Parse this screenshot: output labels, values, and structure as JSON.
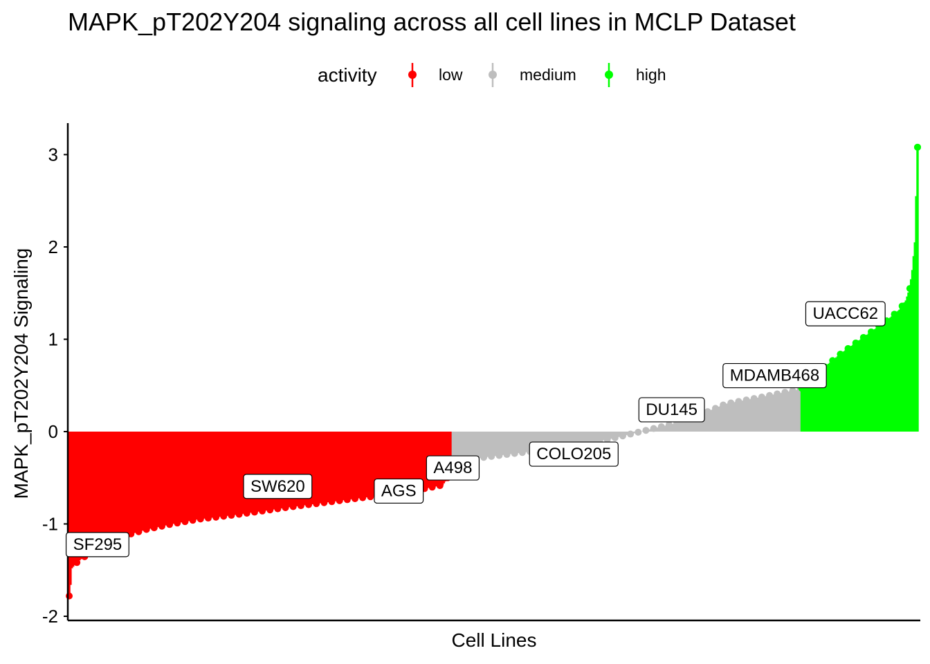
{
  "chart_data": {
    "type": "bar",
    "title": "MAPK_pT202Y204 signaling across all cell lines in MCLP Dataset",
    "xlabel": "Cell Lines",
    "ylabel": "MAPK_pT202Y204 Signaling",
    "ylim": [
      -2.05,
      3.35
    ],
    "yticks": [
      -2,
      -1,
      0,
      1,
      2,
      3
    ],
    "grid": false,
    "n_cell_lines": 660,
    "legend": {
      "title": "activity",
      "position": "top",
      "entries": [
        {
          "name": "low",
          "color": "#ff0000"
        },
        {
          "name": "medium",
          "color": "#bebebe"
        },
        {
          "name": "high",
          "color": "#00ff00"
        }
      ]
    },
    "curve": [
      {
        "rank": 0,
        "value": -1.78
      },
      {
        "rank": 1,
        "value": -1.66
      },
      {
        "rank": 2,
        "value": -1.48
      },
      {
        "rank": 5,
        "value": -1.43
      },
      {
        "rank": 10,
        "value": -1.37
      },
      {
        "rank": 18,
        "value": -1.31
      },
      {
        "rank": 30,
        "value": -1.2
      },
      {
        "rank": 45,
        "value": -1.12
      },
      {
        "rank": 60,
        "value": -1.06
      },
      {
        "rank": 80,
        "value": -1.0
      },
      {
        "rank": 100,
        "value": -0.95
      },
      {
        "rank": 130,
        "value": -0.9
      },
      {
        "rank": 170,
        "value": -0.82
      },
      {
        "rank": 220,
        "value": -0.73
      },
      {
        "rank": 260,
        "value": -0.66
      },
      {
        "rank": 290,
        "value": -0.58
      },
      {
        "rank": 300,
        "value": -0.52
      },
      {
        "rank": 297,
        "value": -0.44
      },
      {
        "rank": 298,
        "value": -0.43
      },
      {
        "rank": 310,
        "value": -0.3
      },
      {
        "rank": 350,
        "value": -0.23
      },
      {
        "rank": 390,
        "value": -0.16
      },
      {
        "rank": 420,
        "value": -0.08
      },
      {
        "rank": 450,
        "value": 0.02
      },
      {
        "rank": 480,
        "value": 0.12
      },
      {
        "rank": 510,
        "value": 0.3
      },
      {
        "rank": 540,
        "value": 0.38
      },
      {
        "rank": 568,
        "value": 0.46
      },
      {
        "rank": 569,
        "value": 0.47
      },
      {
        "rank": 580,
        "value": 0.62
      },
      {
        "rank": 600,
        "value": 0.85
      },
      {
        "rank": 620,
        "value": 1.05
      },
      {
        "rank": 635,
        "value": 1.2
      },
      {
        "rank": 645,
        "value": 1.32
      },
      {
        "rank": 650,
        "value": 1.42
      },
      {
        "rank": 653,
        "value": 1.55
      },
      {
        "rank": 655,
        "value": 1.75
      },
      {
        "rank": 657,
        "value": 2.05
      },
      {
        "rank": 658,
        "value": 2.55
      },
      {
        "rank": 659,
        "value": 3.08
      }
    ],
    "groups": [
      {
        "activity": "low",
        "from_rank": 0,
        "to_rank": 297,
        "color": "#ff0000"
      },
      {
        "activity": "medium",
        "from_rank": 298,
        "to_rank": 568,
        "color": "#bebebe"
      },
      {
        "activity": "high",
        "from_rank": 569,
        "to_rank": 659,
        "color": "#00ff00"
      }
    ],
    "labels": [
      {
        "name": "SF295",
        "rank": 22,
        "value": -1.22
      },
      {
        "name": "SW620",
        "rank": 162,
        "value": -0.59
      },
      {
        "name": "AGS",
        "rank": 256,
        "value": -0.64
      },
      {
        "name": "A498",
        "rank": 298,
        "value": -0.39
      },
      {
        "name": "COLO205",
        "rank": 392,
        "value": -0.24
      },
      {
        "name": "DU145",
        "rank": 468,
        "value": 0.24
      },
      {
        "name": "MDAMB468",
        "rank": 548,
        "value": 0.61
      },
      {
        "name": "UACC62",
        "rank": 603,
        "value": 1.28
      }
    ]
  }
}
